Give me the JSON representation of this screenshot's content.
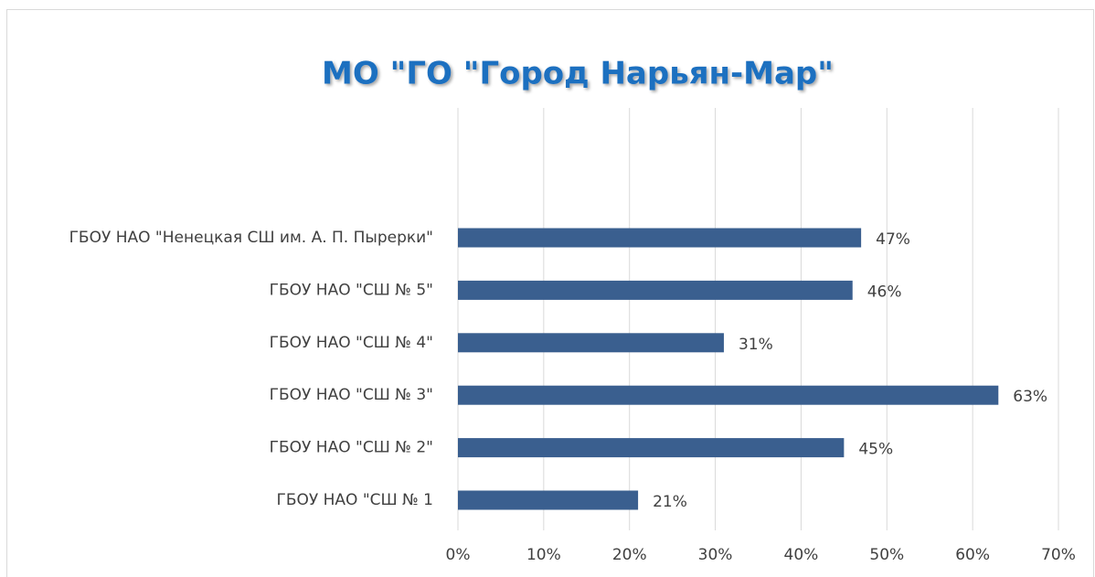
{
  "chart_data": {
    "type": "bar",
    "orientation": "horizontal",
    "title": "МО \"ГО \"Город Нарьян-Мар\"",
    "categories": [
      "ГБОУ НАО \"Ненецкая СШ им. А. П. Пырерки\"",
      "ГБОУ НАО \"СШ № 5\"",
      "ГБОУ НАО \"СШ № 4\"",
      "ГБОУ НАО \"СШ № 3\"",
      "ГБОУ НАО \"СШ № 2\"",
      "ГБОУ НАО \"СШ № 1"
    ],
    "values": [
      47,
      46,
      31,
      63,
      45,
      21
    ],
    "value_labels": [
      "47%",
      "46%",
      "31%",
      "63%",
      "45%",
      "21%"
    ],
    "color": "#3a5f8f",
    "xlim": [
      0,
      70
    ],
    "xticks": [
      {
        "value": 0,
        "label": "0%"
      },
      {
        "value": 10,
        "label": "10%"
      },
      {
        "value": 20,
        "label": "20%"
      },
      {
        "value": 30,
        "label": "30%"
      },
      {
        "value": 40,
        "label": "40%"
      },
      {
        "value": 50,
        "label": "50%"
      },
      {
        "value": 60,
        "label": "60%"
      },
      {
        "value": 70,
        "label": "70%"
      }
    ],
    "grid": true
  }
}
